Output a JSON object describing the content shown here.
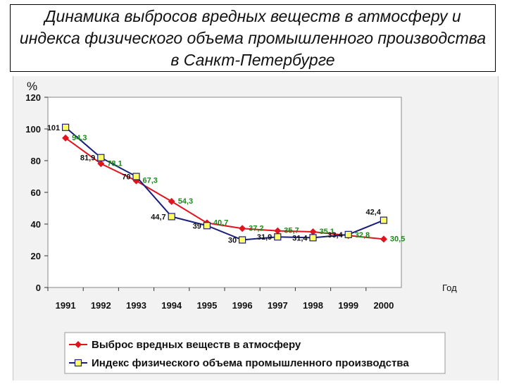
{
  "title": "Динамика выбросов вредных веществ в атмосферу и индекса физического объема промышленного производства в Санкт-Петербурге",
  "colors": {
    "red_series": "#e0141e",
    "blue_series": "#1a1f78",
    "marker_fill_yellow": "#ffff66",
    "label_green": "#1a8a1a",
    "plot_bg": "#ffffff",
    "slide_bg": "#f2f2f2"
  },
  "chart_data": {
    "type": "line",
    "title": "",
    "ylabel": "%",
    "xlabel": "Год",
    "ylim": [
      0,
      120
    ],
    "yticks": [
      "0",
      "20",
      "40",
      "60",
      "80",
      "100",
      "120"
    ],
    "categories": [
      "1991",
      "1992",
      "1993",
      "1994",
      "1995",
      "1996",
      "1997",
      "1998",
      "1999",
      "2000"
    ],
    "grid": false,
    "legend_position": "bottom",
    "series": [
      {
        "name": "Выброс вредных веществ в атмосферу",
        "color": "#e0141e",
        "marker": "diamond",
        "values": [
          94.3,
          78.1,
          67.3,
          54.3,
          40.7,
          37.2,
          35.7,
          35.1,
          32.8,
          30.5
        ],
        "labels": [
          "94,3",
          "78,1",
          "67,3",
          "54,3",
          "40,7",
          "37,2",
          "35,7",
          "35,1",
          "32,8",
          "30,5"
        ]
      },
      {
        "name": "Индекс физического объема промышленного производства",
        "color": "#1a1f78",
        "marker": "square",
        "values": [
          101,
          81.9,
          70,
          44.7,
          39,
          30,
          31.9,
          31.4,
          33.4,
          42.4
        ],
        "labels": [
          "101",
          "81,9",
          "70",
          "44,7",
          "39",
          "30",
          "31,9",
          "31,4",
          "33,4",
          "42,4"
        ]
      }
    ]
  }
}
